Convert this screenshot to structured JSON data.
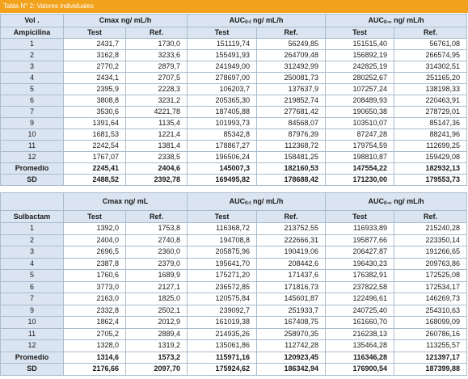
{
  "title": "Tabla N° 2: Valores individuales",
  "tables": [
    {
      "header": [
        {
          "main": "Vol ."
        },
        {
          "main": "Cmax ng/ mL/h"
        },
        {
          "main": "AUC",
          "sub": "0-t",
          "rest": " ng/ mL/h"
        },
        {
          "main": "AUC",
          "sub": "0-∞",
          "rest": " ng/ mL/h"
        }
      ],
      "subheader": [
        "Ampicilina",
        "Test",
        "Ref.",
        "Test",
        "Ref.",
        "Test",
        "Ref."
      ],
      "rows": [
        [
          "1",
          "2431,7",
          "1730,0",
          "151119,74",
          "56249,85",
          "151515,40",
          "56761,08"
        ],
        [
          "2",
          "3162,8",
          "3233,6",
          "155491,93",
          "264709,48",
          "156892,19",
          "266574,95"
        ],
        [
          "3",
          "2770,2",
          "2879,7",
          "241949,00",
          "312492,99",
          "242825,19",
          "314302,51"
        ],
        [
          "4",
          "2434,1",
          "2707,5",
          "278697,00",
          "250081,73",
          "280252,67",
          "251165,20"
        ],
        [
          "5",
          "2395,9",
          "2228,3",
          "106203,7",
          "137637,9",
          "107257,24",
          "138198,33"
        ],
        [
          "6",
          "3808,8",
          "3231,2",
          "205365,30",
          "219852,74",
          "208489,93",
          "220463,91"
        ],
        [
          "7",
          "3530,6",
          "4221,78",
          "187405,88",
          "277681,42",
          "190650,38",
          "278729,01"
        ],
        [
          "9",
          "1391,64",
          "1135,4",
          "101993,73",
          "84568,07",
          "103510,07",
          "85147,36"
        ],
        [
          "10",
          "1681,53",
          "1221,4",
          "85342,8",
          "87976,39",
          "87247,28",
          "88241,96"
        ],
        [
          "11",
          "2242,54",
          "1381,4",
          "178867,27",
          "112368,72",
          "179754,59",
          "112699,25"
        ],
        [
          "12",
          "1767,07",
          "2338,5",
          "196506,24",
          "158481,25",
          "198810,87",
          "159429,08"
        ],
        [
          "Promedio",
          "2245,41",
          "2404,6",
          "145007,3",
          "182160,53",
          "147554,22",
          "182932,13"
        ],
        [
          "SD",
          "2488,52",
          "2392,78",
          "169495,82",
          "178688,42",
          "171230,00",
          "179553,73"
        ]
      ]
    },
    {
      "header": [
        {
          "main": "Cmax ng/ mL"
        },
        {
          "main": "AUC",
          "sub": "0-t",
          "rest": " ng/ mL/h"
        },
        {
          "main": "AUC",
          "sub": "0-∞",
          "rest": " ng/ mL/h"
        }
      ],
      "subheader": [
        "Sulbactam",
        "Test",
        "Ref.",
        "Test",
        "Ref.",
        "Test",
        "Ref."
      ],
      "rows": [
        [
          "1",
          "1392,0",
          "1753,8",
          "116368,72",
          "213752,55",
          "116933,89",
          "215240,28"
        ],
        [
          "2",
          "2404,0",
          "2740,8",
          "194708,8",
          "222666,31",
          "195877,66",
          "223350,14"
        ],
        [
          "3",
          "2696,5",
          "2360,0",
          "205875,96",
          "190419,06",
          "206427,87",
          "191266,65"
        ],
        [
          "4",
          "2387,8",
          "2379,0",
          "195641,70",
          "208442,6",
          "196430,23",
          "209763,86"
        ],
        [
          "5",
          "1760,6",
          "1689,9",
          "175271,20",
          "171437,6",
          "176382,91",
          "172525,08"
        ],
        [
          "6",
          "3773,0",
          "2127,1",
          "236572,85",
          "171816,73",
          "237822,58",
          "172534,17"
        ],
        [
          "7",
          "2163,0",
          "1825,0",
          "120575,84",
          "145601,87",
          "122496,61",
          "146269,73"
        ],
        [
          "9",
          "2332,8",
          "2502,1",
          "239092,7",
          "251933,7",
          "240725,40",
          "254310,63"
        ],
        [
          "10",
          "1862,4",
          "2012,9",
          "161019,38",
          "167408,75",
          "161660,70",
          "168099,09"
        ],
        [
          "11",
          "2705,2",
          "2889,4",
          "214935,26",
          "258970,35",
          "216238,13",
          "260786,16"
        ],
        [
          "12",
          "1328,0",
          "1319,2",
          "135061,86",
          "112742,28",
          "135464,28",
          "113255,57"
        ],
        [
          "Promedio",
          "1314,6",
          "1573,2",
          "115971,16",
          "120923,45",
          "116346,28",
          "121397,17"
        ],
        [
          "SD",
          "2176,66",
          "2097,70",
          "175924,62",
          "186342,94",
          "176900,54",
          "187399,88"
        ]
      ]
    }
  ]
}
